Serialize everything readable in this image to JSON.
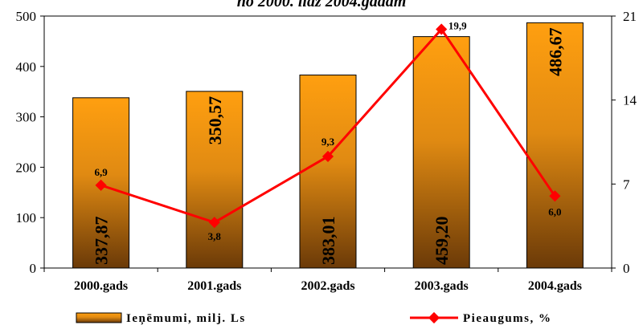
{
  "chart_data": {
    "type": "bar",
    "title": "no 2000. līdz 2004.gadam",
    "categories": [
      "2000.gads",
      "2001.gads",
      "2002.gads",
      "2003.gads",
      "2004.gads"
    ],
    "series": [
      {
        "name": "Ieņēmumi, milj. Ls",
        "type": "bar",
        "axis": "left",
        "values": [
          337.87,
          350.57,
          383.01,
          459.2,
          486.67
        ],
        "labels": [
          "337,87",
          "350,57",
          "383,01",
          "459,20",
          "486,67"
        ],
        "color": "#f59a14"
      },
      {
        "name": "Pieaugums, %",
        "type": "line",
        "axis": "right",
        "values": [
          6.9,
          3.8,
          9.3,
          19.9,
          6.0
        ],
        "labels": [
          "6,9",
          "3,8",
          "9,3",
          "19,9",
          "6,0"
        ],
        "color": "#ff0000"
      }
    ],
    "y_left": {
      "min": 0,
      "max": 500,
      "ticks": [
        "0",
        "100",
        "200",
        "300",
        "400",
        "500"
      ]
    },
    "y_right": {
      "min": 0,
      "max": 21,
      "ticks": [
        "0",
        "7",
        "14",
        "21"
      ]
    },
    "grid": false,
    "legend": "bottom"
  }
}
